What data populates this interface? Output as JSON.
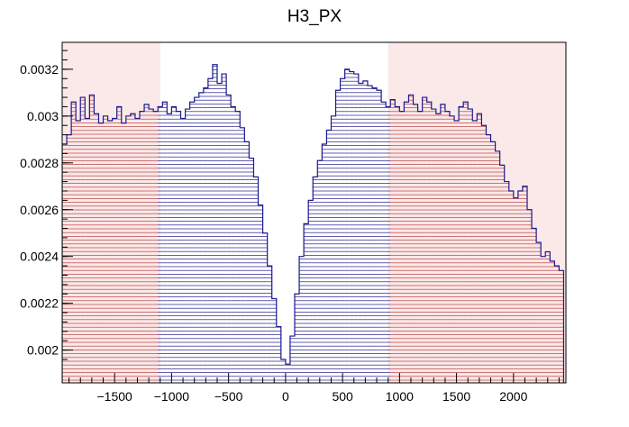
{
  "chart_data": {
    "type": "histogram",
    "title": "H3_PX",
    "xlim": [
      -1960,
      2460
    ],
    "ylim": [
      0.00186,
      0.003315
    ],
    "x_ticks": [
      -1500,
      -1000,
      -500,
      0,
      500,
      1000,
      1500,
      2000
    ],
    "x_tick_labels": [
      "−1500",
      "−1000",
      "−500",
      "0",
      "500",
      "1000",
      "1500",
      "2000"
    ],
    "y_ticks": [
      0.002,
      0.0022,
      0.0024,
      0.0026,
      0.0028,
      0.003,
      0.0032
    ],
    "y_tick_labels": [
      "0.002",
      "0.0022",
      "0.0024",
      "0.0026",
      "0.0028",
      "0.003",
      "0.0032"
    ],
    "bin_width": 40,
    "series": [
      {
        "edge_color": "#1a1a8c",
        "hatch": "horizontal",
        "hatch_color_inner": "#1a1a8c",
        "hatch_color_outer": "#b84040",
        "outer_fill": "#fbe8e8",
        "points": [
          [
            -1940,
            0.00288
          ],
          [
            -1900,
            0.00292
          ],
          [
            -1860,
            0.00306
          ],
          [
            -1820,
            0.00298
          ],
          [
            -1780,
            0.00308
          ],
          [
            -1740,
            0.00299
          ],
          [
            -1700,
            0.00309
          ],
          [
            -1660,
            0.00301
          ],
          [
            -1620,
            0.00297
          ],
          [
            -1580,
            0.003
          ],
          [
            -1540,
            0.00298
          ],
          [
            -1500,
            0.00299
          ],
          [
            -1460,
            0.00304
          ],
          [
            -1420,
            0.00297
          ],
          [
            -1380,
            0.003
          ],
          [
            -1340,
            0.00301
          ],
          [
            -1300,
            0.00299
          ],
          [
            -1260,
            0.00302
          ],
          [
            -1220,
            0.00305
          ],
          [
            -1180,
            0.00303
          ],
          [
            -1140,
            0.00302
          ],
          [
            -1100,
            0.00304
          ],
          [
            -1060,
            0.00306
          ],
          [
            -1020,
            0.00301
          ],
          [
            -980,
            0.00304
          ],
          [
            -940,
            0.00302
          ],
          [
            -900,
            0.00299
          ],
          [
            -860,
            0.00303
          ],
          [
            -820,
            0.00306
          ],
          [
            -780,
            0.00308
          ],
          [
            -740,
            0.0031
          ],
          [
            -700,
            0.00312
          ],
          [
            -660,
            0.00316
          ],
          [
            -620,
            0.00322
          ],
          [
            -580,
            0.00314
          ],
          [
            -540,
            0.00318
          ],
          [
            -500,
            0.00309
          ],
          [
            -460,
            0.00304
          ],
          [
            -420,
            0.00302
          ],
          [
            -380,
            0.00295
          ],
          [
            -340,
            0.00289
          ],
          [
            -300,
            0.00282
          ],
          [
            -260,
            0.00274
          ],
          [
            -220,
            0.00262
          ],
          [
            -180,
            0.0025
          ],
          [
            -140,
            0.00236
          ],
          [
            -100,
            0.00222
          ],
          [
            -60,
            0.0021
          ],
          [
            -20,
            0.00196
          ],
          [
            20,
            0.00194
          ],
          [
            60,
            0.00206
          ],
          [
            100,
            0.00224
          ],
          [
            140,
            0.0024
          ],
          [
            180,
            0.00254
          ],
          [
            220,
            0.00264
          ],
          [
            260,
            0.00274
          ],
          [
            300,
            0.00281
          ],
          [
            340,
            0.00288
          ],
          [
            380,
            0.00294
          ],
          [
            420,
            0.003
          ],
          [
            460,
            0.00311
          ],
          [
            500,
            0.00316
          ],
          [
            540,
            0.0032
          ],
          [
            580,
            0.00319
          ],
          [
            620,
            0.00318
          ],
          [
            660,
            0.00314
          ],
          [
            700,
            0.00315
          ],
          [
            740,
            0.00313
          ],
          [
            780,
            0.00312
          ],
          [
            820,
            0.00311
          ],
          [
            860,
            0.00306
          ],
          [
            900,
            0.00304
          ],
          [
            940,
            0.00307
          ],
          [
            980,
            0.00304
          ],
          [
            1020,
            0.00302
          ],
          [
            1060,
            0.00306
          ],
          [
            1100,
            0.00309
          ],
          [
            1140,
            0.00305
          ],
          [
            1180,
            0.00302
          ],
          [
            1220,
            0.00308
          ],
          [
            1260,
            0.00306
          ],
          [
            1300,
            0.00303
          ],
          [
            1340,
            0.00301
          ],
          [
            1380,
            0.00305
          ],
          [
            1420,
            0.00302
          ],
          [
            1460,
            0.003
          ],
          [
            1500,
            0.00298
          ],
          [
            1540,
            0.00304
          ],
          [
            1580,
            0.00306
          ],
          [
            1620,
            0.00303
          ],
          [
            1660,
            0.00298
          ],
          [
            1700,
            0.00301
          ],
          [
            1740,
            0.00296
          ],
          [
            1780,
            0.00292
          ],
          [
            1820,
            0.00289
          ],
          [
            1860,
            0.00285
          ],
          [
            1900,
            0.00279
          ],
          [
            1940,
            0.00272
          ],
          [
            1980,
            0.00268
          ],
          [
            2020,
            0.00265
          ],
          [
            2060,
            0.00268
          ],
          [
            2100,
            0.0027
          ],
          [
            2140,
            0.0026
          ],
          [
            2180,
            0.00252
          ],
          [
            2220,
            0.00246
          ],
          [
            2260,
            0.0024
          ],
          [
            2300,
            0.00242
          ],
          [
            2340,
            0.00238
          ],
          [
            2380,
            0.00236
          ],
          [
            2420,
            0.00234
          ]
        ]
      }
    ]
  }
}
